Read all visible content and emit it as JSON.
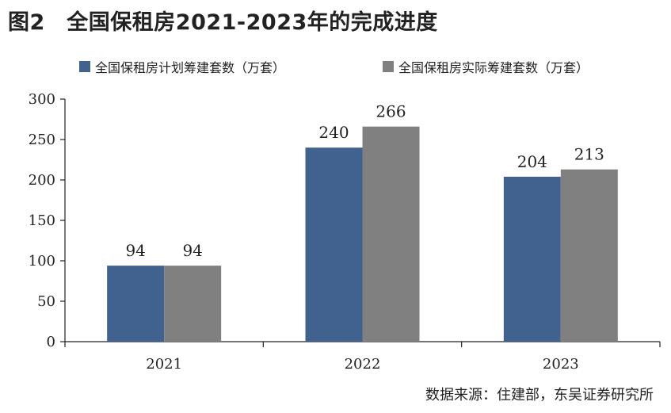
{
  "figure": {
    "title": "图2　全国保租房2021-2023年的完成进度",
    "source": "数据来源：住建部，东吴证券研究所"
  },
  "chart_data": {
    "type": "bar",
    "categories": [
      "2021",
      "2022",
      "2023"
    ],
    "series": [
      {
        "name": "全国保租房计划筹建套数（万套）",
        "values": [
          94,
          240,
          204
        ],
        "color": "#41628F"
      },
      {
        "name": "全国保租房实际筹建套数（万套）",
        "values": [
          94,
          266,
          213
        ],
        "color": "#808080"
      }
    ],
    "ylim": [
      0,
      300
    ],
    "yticks": [
      0,
      50,
      100,
      150,
      200,
      250,
      300
    ],
    "xlabel": "",
    "ylabel": "",
    "grid": false,
    "legend": "top",
    "data_labels": true
  }
}
